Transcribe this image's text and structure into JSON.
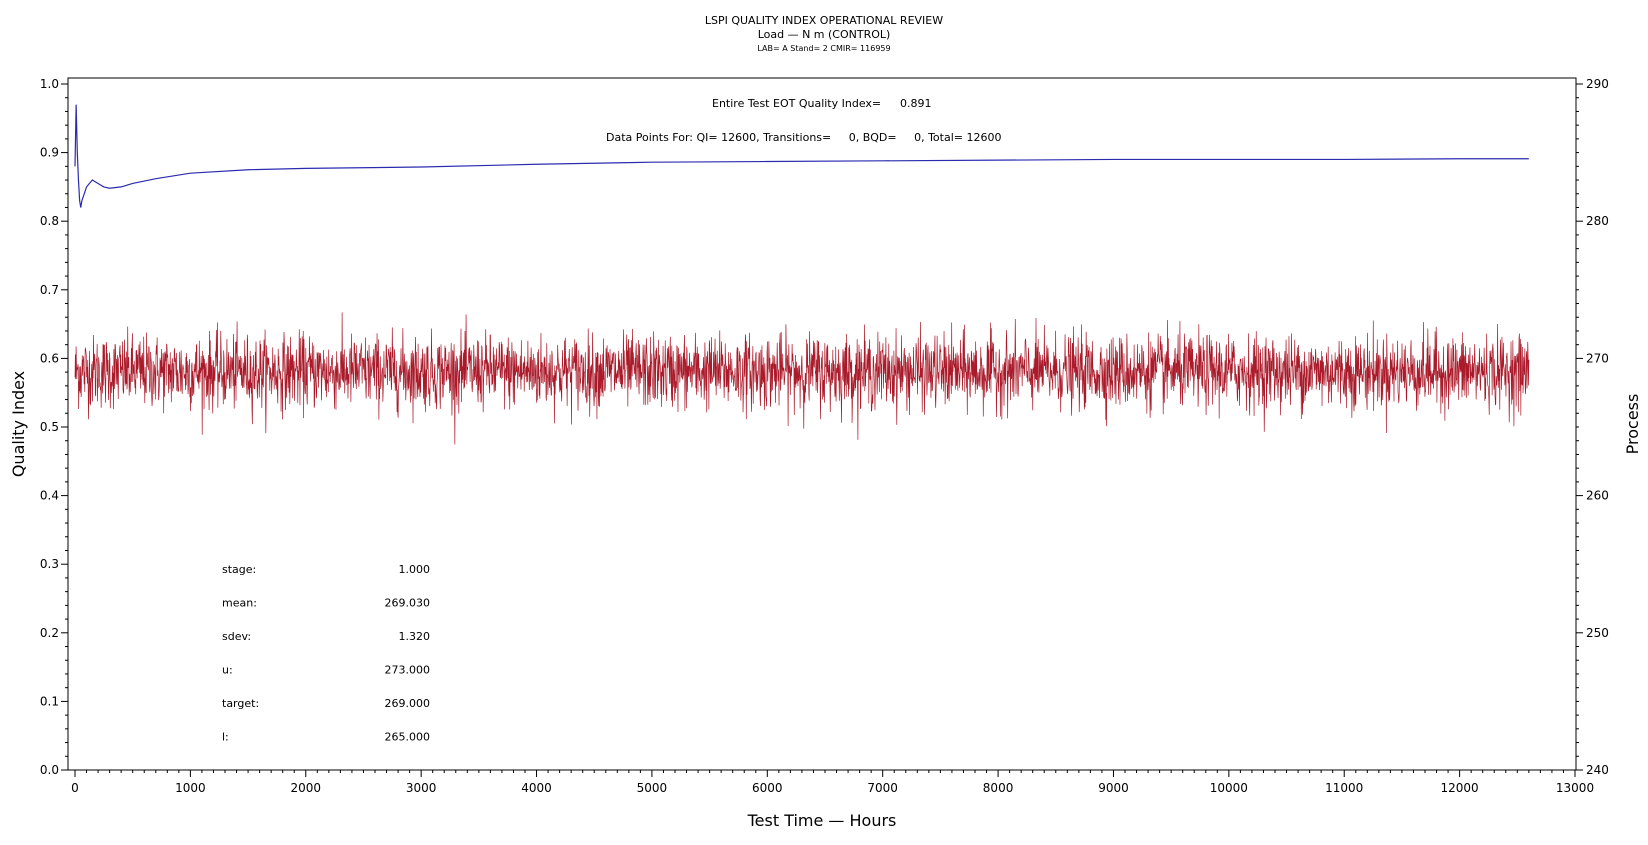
{
  "header": {
    "title": "LSPI QUALITY INDEX OPERATIONAL REVIEW",
    "subtitle": "Load — N m (CONTROL)",
    "info": "LAB= A Stand= 2 CMIR= 116959"
  },
  "annotations": {
    "qi_label": "Entire Test EOT Quality Index=",
    "qi_value": "0.891",
    "points": "Data Points For: QI= 12600, Transitions=     0, BQD=     0, Total= 12600"
  },
  "stats": [
    {
      "label": "stage:",
      "value": "1.000"
    },
    {
      "label": "mean:",
      "value": "269.030"
    },
    {
      "label": "sdev:",
      "value": "1.320"
    },
    {
      "label": "u:",
      "value": "273.000"
    },
    {
      "label": "target:",
      "value": "269.000"
    },
    {
      "label": "l:",
      "value": "265.000"
    }
  ],
  "chart_data": {
    "type": "line",
    "xlabel": "Test Time — Hours",
    "ylabel": "Quality Index",
    "y2label": "Process",
    "xlim": [
      0,
      13000
    ],
    "ylim": [
      0,
      1.0
    ],
    "y2lim": [
      240,
      290
    ],
    "xticks": [
      "0",
      "1000",
      "2000",
      "3000",
      "4000",
      "5000",
      "6000",
      "7000",
      "8000",
      "9000",
      "10000",
      "11000",
      "12000",
      "13000"
    ],
    "yticks": [
      "0.0",
      "0.1",
      "0.2",
      "0.3",
      "0.4",
      "0.5",
      "0.6",
      "0.7",
      "0.8",
      "0.9",
      "1.0"
    ],
    "y2ticks": [
      "240",
      "250",
      "260",
      "270",
      "280",
      "290"
    ],
    "grid": false,
    "series": [
      {
        "name": "Quality Index",
        "axis": "left",
        "color": "#2b2bb0",
        "x": [
          0,
          10,
          20,
          30,
          40,
          50,
          60,
          80,
          100,
          150,
          200,
          250,
          300,
          400,
          500,
          700,
          1000,
          1500,
          2000,
          3000,
          4000,
          5000,
          6000,
          7000,
          8000,
          9000,
          10000,
          11000,
          12000,
          12600
        ],
        "y": [
          0.88,
          0.97,
          0.9,
          0.86,
          0.83,
          0.82,
          0.83,
          0.84,
          0.85,
          0.86,
          0.855,
          0.85,
          0.848,
          0.85,
          0.855,
          0.862,
          0.87,
          0.875,
          0.877,
          0.879,
          0.883,
          0.886,
          0.887,
          0.888,
          0.889,
          0.89,
          0.89,
          0.89,
          0.891,
          0.891
        ]
      },
      {
        "name": "Process",
        "axis": "right",
        "color": "#aa1a2a",
        "x_start": 0,
        "x_end": 12600,
        "points": 12600,
        "mean": 269.03,
        "sdev": 1.32,
        "min": 263.0,
        "max": 273.5
      }
    ]
  }
}
